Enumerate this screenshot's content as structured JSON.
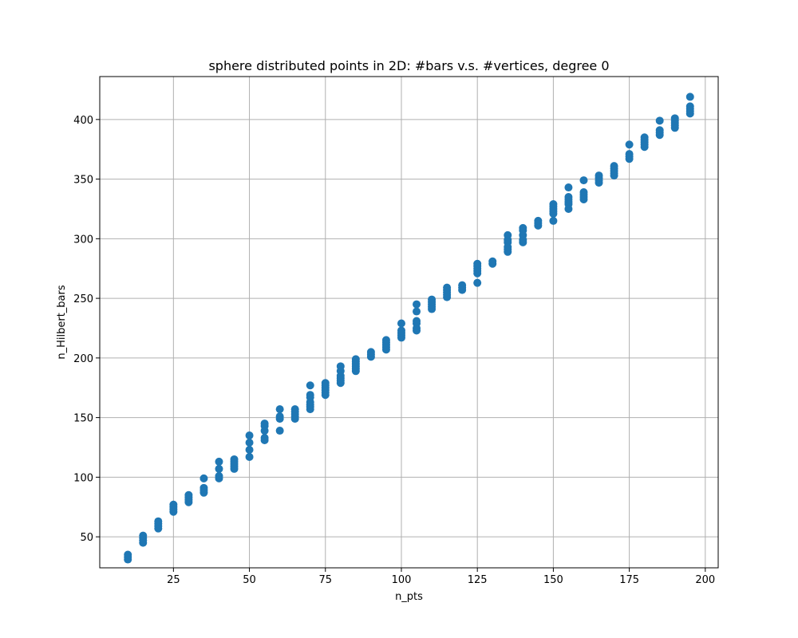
{
  "chart_data": {
    "type": "scatter",
    "title": "sphere distributed points in 2D: #bars v.s. #vertices, degree 0",
    "xlabel": "n_pts",
    "ylabel": "n_Hilbert_bars",
    "xlim": [
      0.75,
      204.25
    ],
    "ylim": [
      24,
      436
    ],
    "xticks": [
      25,
      50,
      75,
      100,
      125,
      150,
      175,
      200
    ],
    "yticks": [
      50,
      100,
      150,
      200,
      250,
      300,
      350,
      400
    ],
    "grid": true,
    "marker_color": "#1f77b4",
    "series": [
      {
        "points": [
          [
            10,
            31
          ],
          [
            10,
            33
          ],
          [
            10,
            35
          ],
          [
            15,
            45
          ],
          [
            15,
            47
          ],
          [
            15,
            49
          ],
          [
            15,
            51
          ],
          [
            20,
            57
          ],
          [
            20,
            59
          ],
          [
            20,
            61
          ],
          [
            20,
            63
          ],
          [
            25,
            71
          ],
          [
            25,
            73
          ],
          [
            25,
            75
          ],
          [
            25,
            77
          ],
          [
            30,
            79
          ],
          [
            30,
            81
          ],
          [
            30,
            83
          ],
          [
            30,
            85
          ],
          [
            35,
            87
          ],
          [
            35,
            89
          ],
          [
            35,
            91
          ],
          [
            35,
            99
          ],
          [
            40,
            99
          ],
          [
            40,
            101
          ],
          [
            40,
            107
          ],
          [
            40,
            113
          ],
          [
            45,
            107
          ],
          [
            45,
            109
          ],
          [
            45,
            111
          ],
          [
            45,
            113
          ],
          [
            45,
            115
          ],
          [
            50,
            117
          ],
          [
            50,
            123
          ],
          [
            50,
            129
          ],
          [
            50,
            135
          ],
          [
            55,
            131
          ],
          [
            55,
            133
          ],
          [
            55,
            139
          ],
          [
            55,
            143
          ],
          [
            55,
            145
          ],
          [
            60,
            139
          ],
          [
            60,
            149
          ],
          [
            60,
            151
          ],
          [
            60,
            157
          ],
          [
            65,
            149
          ],
          [
            65,
            151
          ],
          [
            65,
            153
          ],
          [
            65,
            155
          ],
          [
            65,
            157
          ],
          [
            70,
            157
          ],
          [
            70,
            159
          ],
          [
            70,
            161
          ],
          [
            70,
            163
          ],
          [
            70,
            167
          ],
          [
            70,
            169
          ],
          [
            70,
            177
          ],
          [
            75,
            169
          ],
          [
            75,
            171
          ],
          [
            75,
            173
          ],
          [
            75,
            175
          ],
          [
            75,
            177
          ],
          [
            75,
            179
          ],
          [
            80,
            179
          ],
          [
            80,
            181
          ],
          [
            80,
            183
          ],
          [
            80,
            185
          ],
          [
            80,
            189
          ],
          [
            80,
            193
          ],
          [
            85,
            189
          ],
          [
            85,
            191
          ],
          [
            85,
            193
          ],
          [
            85,
            195
          ],
          [
            85,
            197
          ],
          [
            85,
            199
          ],
          [
            90,
            201
          ],
          [
            90,
            203
          ],
          [
            90,
            205
          ],
          [
            95,
            207
          ],
          [
            95,
            209
          ],
          [
            95,
            211
          ],
          [
            95,
            213
          ],
          [
            95,
            215
          ],
          [
            100,
            217
          ],
          [
            100,
            219
          ],
          [
            100,
            221
          ],
          [
            100,
            223
          ],
          [
            100,
            229
          ],
          [
            105,
            223
          ],
          [
            105,
            225
          ],
          [
            105,
            229
          ],
          [
            105,
            231
          ],
          [
            105,
            239
          ],
          [
            105,
            245
          ],
          [
            110,
            241
          ],
          [
            110,
            243
          ],
          [
            110,
            245
          ],
          [
            110,
            247
          ],
          [
            110,
            249
          ],
          [
            115,
            251
          ],
          [
            115,
            253
          ],
          [
            115,
            255
          ],
          [
            115,
            257
          ],
          [
            115,
            259
          ],
          [
            120,
            257
          ],
          [
            120,
            259
          ],
          [
            120,
            261
          ],
          [
            125,
            263
          ],
          [
            125,
            271
          ],
          [
            125,
            273
          ],
          [
            125,
            275
          ],
          [
            125,
            277
          ],
          [
            125,
            279
          ],
          [
            130,
            279
          ],
          [
            130,
            281
          ],
          [
            135,
            289
          ],
          [
            135,
            291
          ],
          [
            135,
            293
          ],
          [
            135,
            297
          ],
          [
            135,
            299
          ],
          [
            135,
            303
          ],
          [
            140,
            297
          ],
          [
            140,
            299
          ],
          [
            140,
            303
          ],
          [
            140,
            307
          ],
          [
            140,
            309
          ],
          [
            145,
            311
          ],
          [
            145,
            313
          ],
          [
            145,
            315
          ],
          [
            150,
            315
          ],
          [
            150,
            321
          ],
          [
            150,
            323
          ],
          [
            150,
            325
          ],
          [
            150,
            327
          ],
          [
            150,
            329
          ],
          [
            155,
            325
          ],
          [
            155,
            329
          ],
          [
            155,
            331
          ],
          [
            155,
            333
          ],
          [
            155,
            335
          ],
          [
            155,
            343
          ],
          [
            160,
            333
          ],
          [
            160,
            335
          ],
          [
            160,
            337
          ],
          [
            160,
            339
          ],
          [
            160,
            349
          ],
          [
            165,
            347
          ],
          [
            165,
            349
          ],
          [
            165,
            351
          ],
          [
            165,
            353
          ],
          [
            170,
            353
          ],
          [
            170,
            355
          ],
          [
            170,
            357
          ],
          [
            170,
            359
          ],
          [
            170,
            361
          ],
          [
            175,
            367
          ],
          [
            175,
            369
          ],
          [
            175,
            371
          ],
          [
            175,
            379
          ],
          [
            180,
            377
          ],
          [
            180,
            379
          ],
          [
            180,
            381
          ],
          [
            180,
            383
          ],
          [
            180,
            385
          ],
          [
            185,
            387
          ],
          [
            185,
            389
          ],
          [
            185,
            391
          ],
          [
            185,
            399
          ],
          [
            190,
            393
          ],
          [
            190,
            395
          ],
          [
            190,
            397
          ],
          [
            190,
            399
          ],
          [
            190,
            401
          ],
          [
            195,
            405
          ],
          [
            195,
            407
          ],
          [
            195,
            409
          ],
          [
            195,
            411
          ],
          [
            195,
            419
          ]
        ]
      }
    ]
  }
}
